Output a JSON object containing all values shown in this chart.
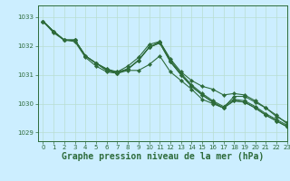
{
  "background_color": "#cceeff",
  "grid_color": "#b8ddd0",
  "line_color": "#2d6b3a",
  "xlabel": "Graphe pression niveau de la mer (hPa)",
  "xlim": [
    -0.5,
    23
  ],
  "ylim": [
    1028.7,
    1033.4
  ],
  "yticks": [
    1029,
    1030,
    1031,
    1032,
    1033
  ],
  "xticks": [
    0,
    1,
    2,
    3,
    4,
    5,
    6,
    7,
    8,
    9,
    10,
    11,
    12,
    13,
    14,
    15,
    16,
    17,
    18,
    19,
    20,
    21,
    22,
    23
  ],
  "series": [
    [
      1032.85,
      1032.45,
      1032.2,
      1032.15,
      1031.6,
      1031.3,
      1031.1,
      1031.05,
      1031.15,
      1031.15,
      1031.35,
      1031.65,
      1031.1,
      1030.8,
      1030.5,
      1030.15,
      1030.0,
      1029.85,
      1030.25,
      1030.25,
      1030.05,
      1029.85,
      1029.55,
      1029.35
    ],
    [
      1032.85,
      1032.5,
      1032.2,
      1032.2,
      1031.65,
      1031.4,
      1031.2,
      1031.1,
      1031.2,
      1031.5,
      1031.95,
      1032.15,
      1031.55,
      1031.1,
      1030.8,
      1030.6,
      1030.5,
      1030.3,
      1030.35,
      1030.3,
      1030.1,
      1029.85,
      1029.6,
      1029.3
    ],
    [
      1032.85,
      1032.5,
      1032.2,
      1032.2,
      1031.65,
      1031.4,
      1031.2,
      1031.05,
      1031.2,
      1031.5,
      1031.95,
      1032.1,
      1031.45,
      1031.0,
      1030.6,
      1030.3,
      1030.05,
      1029.85,
      1030.1,
      1030.05,
      1029.85,
      1029.6,
      1029.4,
      1029.2
    ],
    [
      1032.85,
      1032.5,
      1032.2,
      1032.2,
      1031.65,
      1031.4,
      1031.15,
      1031.05,
      1031.2,
      1031.5,
      1031.95,
      1032.1,
      1031.45,
      1031.0,
      1030.6,
      1030.3,
      1030.05,
      1029.85,
      1030.1,
      1030.05,
      1029.85,
      1029.6,
      1029.4,
      1029.2
    ],
    [
      1032.85,
      1032.5,
      1032.2,
      1032.2,
      1031.65,
      1031.4,
      1031.15,
      1031.1,
      1031.3,
      1031.6,
      1032.05,
      1032.15,
      1031.5,
      1031.05,
      1030.65,
      1030.35,
      1030.1,
      1029.9,
      1030.15,
      1030.1,
      1029.9,
      1029.65,
      1029.45,
      1029.25
    ]
  ],
  "marker": "D",
  "markersize": 2.2,
  "linewidth": 0.8,
  "xlabel_fontsize": 7,
  "tick_fontsize": 5.0,
  "tick_color": "#2d6b3a"
}
